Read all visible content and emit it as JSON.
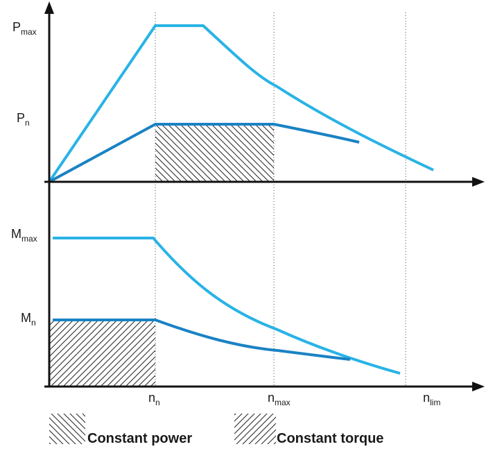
{
  "labels": {
    "p_max": {
      "main": "P",
      "sub": "max"
    },
    "p_n": {
      "main": "P",
      "sub": "n"
    },
    "m_max": {
      "main": "M",
      "sub": "max"
    },
    "m_n": {
      "main": "M",
      "sub": "n"
    },
    "n_n": {
      "main": "n",
      "sub": "n"
    },
    "n_max": {
      "main": "n",
      "sub": "max"
    },
    "n_lim": {
      "main": "n",
      "sub": "lim"
    }
  },
  "legend": {
    "constant_power": "Constant power",
    "constant_torque": "Constant torque"
  },
  "colors": {
    "light_curve": "#29b3e6",
    "dark_curve": "#1a82c4",
    "axis": "#111111",
    "hatch": "#222222",
    "guide": "#444444"
  }
}
